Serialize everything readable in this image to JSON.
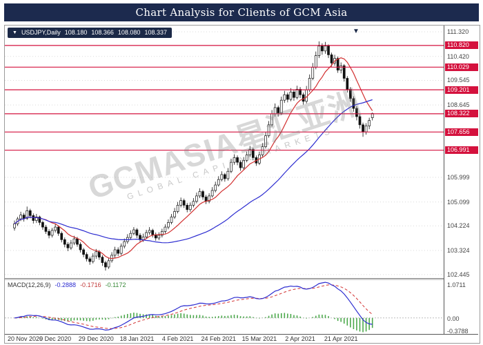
{
  "title_bar": {
    "title": "Chart Analysis for Clients of GCM Asia"
  },
  "colors": {
    "title_bg": "#1c2a4e",
    "info_box_bg": "#1b2947",
    "badge_red": "#d4113d",
    "line_red": "#d4113d",
    "ma_fast": "#d23030",
    "ma_slow": "#2b2bd0",
    "macd_line": "#2b2bd0",
    "macd_signal": "#d23030",
    "macd_hist": "#4aa84a",
    "bull": "#ffffff",
    "bear": "#111111",
    "grid": "#d9d9d9"
  },
  "symbol_info": {
    "dropdown_icon": "▼",
    "symbol": "USDJPY,Daily",
    "open": "108.180",
    "high": "108.366",
    "low": "108.080",
    "close": "108.337"
  },
  "scroll_marker_icon": "▼",
  "watermark": {
    "line1": "GCMASIA星汇亚洲",
    "line2": "GLOBAL CAPITAL MARKETS"
  },
  "macd_header": {
    "label": "MACD(12,26,9)",
    "values": [
      "-0.2888",
      "-0.1716",
      "-0.1172"
    ]
  },
  "chart_data": [
    {
      "type": "candlestick",
      "symbol": "USDJPY",
      "timeframe": "Daily",
      "ylim": [
        102.29,
        111.55
      ],
      "price_ticks": [
        111.32,
        110.42,
        109.545,
        108.645,
        105.999,
        105.099,
        104.224,
        103.324,
        102.445
      ],
      "resistance_lines": [
        110.82,
        110.029,
        109.201,
        108.322,
        107.656,
        106.991
      ],
      "x_tick_labels": [
        "20 Nov 2020",
        "9 Dec 2020",
        "29 Dec 2020",
        "18 Jan 2021",
        "4 Feb 2021",
        "24 Feb 2021",
        "15 Mar 2021",
        "2 Apr 2021",
        "21 Apr 2021"
      ],
      "bars_per_x_tick": 13,
      "moving_averages": [
        {
          "period": 10,
          "color_key": "ma_fast"
        },
        {
          "period": 40,
          "color_key": "ma_slow"
        }
      ],
      "candles": [
        [
          104.15,
          104.42,
          104.05,
          104.3
        ],
        [
          104.3,
          104.55,
          104.22,
          104.48
        ],
        [
          104.48,
          104.74,
          104.4,
          104.62
        ],
        [
          104.62,
          104.7,
          104.38,
          104.5
        ],
        [
          104.5,
          104.93,
          104.44,
          104.78
        ],
        [
          104.78,
          104.85,
          104.5,
          104.6
        ],
        [
          104.6,
          104.68,
          104.31,
          104.42
        ],
        [
          104.42,
          104.66,
          104.33,
          104.55
        ],
        [
          104.55,
          104.6,
          104.25,
          104.35
        ],
        [
          104.35,
          104.42,
          104.08,
          104.18
        ],
        [
          104.18,
          104.26,
          103.93,
          104.02
        ],
        [
          104.02,
          104.1,
          103.77,
          103.88
        ],
        [
          103.88,
          104.15,
          103.8,
          104.06
        ],
        [
          104.06,
          104.3,
          103.98,
          104.18
        ],
        [
          104.18,
          104.24,
          103.86,
          103.95
        ],
        [
          103.95,
          104.02,
          103.62,
          103.72
        ],
        [
          103.72,
          103.8,
          103.44,
          103.55
        ],
        [
          103.55,
          103.63,
          103.3,
          103.42
        ],
        [
          103.42,
          103.71,
          103.35,
          103.6
        ],
        [
          103.6,
          103.86,
          103.52,
          103.75
        ],
        [
          103.75,
          103.82,
          103.46,
          103.55
        ],
        [
          103.55,
          103.62,
          103.25,
          103.35
        ],
        [
          103.35,
          103.42,
          103.08,
          103.18
        ],
        [
          103.18,
          103.26,
          102.92,
          103.02
        ],
        [
          103.02,
          103.1,
          102.8,
          102.92
        ],
        [
          102.92,
          103.22,
          102.85,
          103.12
        ],
        [
          103.12,
          103.38,
          103.02,
          103.28
        ],
        [
          103.28,
          103.34,
          102.98,
          103.08
        ],
        [
          103.08,
          103.15,
          102.76,
          102.88
        ],
        [
          102.88,
          102.95,
          102.59,
          102.72
        ],
        [
          102.72,
          103.05,
          102.65,
          102.95
        ],
        [
          102.95,
          103.26,
          102.88,
          103.15
        ],
        [
          103.15,
          103.46,
          103.06,
          103.35
        ],
        [
          103.35,
          103.44,
          103.12,
          103.22
        ],
        [
          103.22,
          103.58,
          103.15,
          103.48
        ],
        [
          103.48,
          103.76,
          103.4,
          103.65
        ],
        [
          103.65,
          103.92,
          103.57,
          103.8
        ],
        [
          103.8,
          104.06,
          103.72,
          103.95
        ],
        [
          103.95,
          104.18,
          103.88,
          104.08
        ],
        [
          104.08,
          104.14,
          103.78,
          103.88
        ],
        [
          103.88,
          103.96,
          103.62,
          103.72
        ],
        [
          103.72,
          103.94,
          103.64,
          103.82
        ],
        [
          103.82,
          104.08,
          103.74,
          103.98
        ],
        [
          103.98,
          104.18,
          103.9,
          104.06
        ],
        [
          104.06,
          104.12,
          103.8,
          103.9
        ],
        [
          103.9,
          103.98,
          103.68,
          103.78
        ],
        [
          103.78,
          103.99,
          103.7,
          103.88
        ],
        [
          103.88,
          104.12,
          103.8,
          104.02
        ],
        [
          104.02,
          104.28,
          103.95,
          104.18
        ],
        [
          104.18,
          104.46,
          104.1,
          104.35
        ],
        [
          104.35,
          104.66,
          104.28,
          104.55
        ],
        [
          104.55,
          104.88,
          104.48,
          104.75
        ],
        [
          104.75,
          105.1,
          104.68,
          104.98
        ],
        [
          104.98,
          105.26,
          104.9,
          105.15
        ],
        [
          105.15,
          105.22,
          104.88,
          104.98
        ],
        [
          104.98,
          105.06,
          104.72,
          104.82
        ],
        [
          104.82,
          105.08,
          104.74,
          104.98
        ],
        [
          104.98,
          105.24,
          104.9,
          105.12
        ],
        [
          105.12,
          105.44,
          105.05,
          105.32
        ],
        [
          105.32,
          105.6,
          105.24,
          105.48
        ],
        [
          105.48,
          105.54,
          105.18,
          105.28
        ],
        [
          105.28,
          105.36,
          105.02,
          105.12
        ],
        [
          105.12,
          105.42,
          105.05,
          105.32
        ],
        [
          105.32,
          105.64,
          105.26,
          105.52
        ],
        [
          105.52,
          105.84,
          105.45,
          105.72
        ],
        [
          105.72,
          106.04,
          105.66,
          105.92
        ],
        [
          105.92,
          106.22,
          105.85,
          106.1
        ],
        [
          106.1,
          106.16,
          105.84,
          105.95
        ],
        [
          105.95,
          106.34,
          105.88,
          106.22
        ],
        [
          106.22,
          106.68,
          106.15,
          106.55
        ],
        [
          106.55,
          106.84,
          106.46,
          106.72
        ],
        [
          106.72,
          106.8,
          106.44,
          106.55
        ],
        [
          106.55,
          106.62,
          106.24,
          106.35
        ],
        [
          106.35,
          106.74,
          106.28,
          106.62
        ],
        [
          106.62,
          106.94,
          106.55,
          106.82
        ],
        [
          106.82,
          107.15,
          106.74,
          107.02
        ],
        [
          107.02,
          107.08,
          106.62,
          106.72
        ],
        [
          106.72,
          106.8,
          106.42,
          106.52
        ],
        [
          106.52,
          106.94,
          106.45,
          106.82
        ],
        [
          106.82,
          107.25,
          106.75,
          107.12
        ],
        [
          107.12,
          107.66,
          107.05,
          107.52
        ],
        [
          107.52,
          108.06,
          107.45,
          107.92
        ],
        [
          107.92,
          108.46,
          107.85,
          108.32
        ],
        [
          108.32,
          108.7,
          108.22,
          108.55
        ],
        [
          108.55,
          108.62,
          108.22,
          108.35
        ],
        [
          108.35,
          108.95,
          108.28,
          108.82
        ],
        [
          108.82,
          109.16,
          108.72,
          109.02
        ],
        [
          109.02,
          109.1,
          108.74,
          108.85
        ],
        [
          108.85,
          109.26,
          108.78,
          109.12
        ],
        [
          109.12,
          109.2,
          108.8,
          108.92
        ],
        [
          108.92,
          109.35,
          108.85,
          109.22
        ],
        [
          109.22,
          109.3,
          108.9,
          109.02
        ],
        [
          109.02,
          109.1,
          108.66,
          108.78
        ],
        [
          108.78,
          109.34,
          108.7,
          109.2
        ],
        [
          109.2,
          109.76,
          109.12,
          109.62
        ],
        [
          109.62,
          110.18,
          109.55,
          110.02
        ],
        [
          110.02,
          110.6,
          109.95,
          110.45
        ],
        [
          110.45,
          110.97,
          110.36,
          110.8
        ],
        [
          110.8,
          110.9,
          110.48,
          110.62
        ],
        [
          110.62,
          110.95,
          110.52,
          110.8
        ],
        [
          110.8,
          110.86,
          110.36,
          110.48
        ],
        [
          110.48,
          110.56,
          110.05,
          110.18
        ],
        [
          110.18,
          110.48,
          110.08,
          110.35
        ],
        [
          110.35,
          110.42,
          109.82,
          109.92
        ],
        [
          109.92,
          110.2,
          109.8,
          110.08
        ],
        [
          110.08,
          110.14,
          109.5,
          109.62
        ],
        [
          109.62,
          109.7,
          109.1,
          109.22
        ],
        [
          109.22,
          109.3,
          108.76,
          108.88
        ],
        [
          108.88,
          108.96,
          108.4,
          108.52
        ],
        [
          108.52,
          108.6,
          108.08,
          108.22
        ],
        [
          108.22,
          108.3,
          107.78,
          107.92
        ],
        [
          107.92,
          108.0,
          107.48,
          107.66
        ],
        [
          107.66,
          107.98,
          107.56,
          107.88
        ],
        [
          107.88,
          108.18,
          107.76,
          108.08
        ],
        [
          108.18,
          108.366,
          108.08,
          108.337
        ]
      ]
    },
    {
      "type": "macd",
      "label": "MACD(12,26,9)",
      "params": {
        "fast": 12,
        "slow": 26,
        "signal": 9
      },
      "current_values": {
        "macd": -0.2888,
        "signal": -0.1716,
        "osma": -0.1172
      },
      "y_tick_labels": [
        "1.0711",
        "0.00",
        "-0.3788"
      ]
    }
  ]
}
